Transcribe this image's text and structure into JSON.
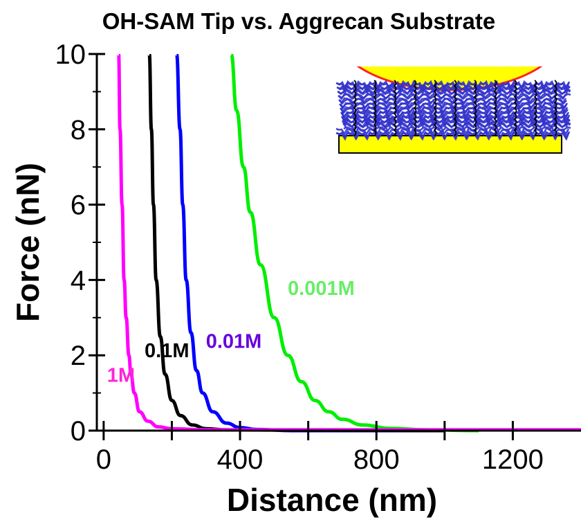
{
  "chart_data": {
    "type": "line",
    "title": "OH-SAM Tip vs. Aggrecan Substrate",
    "xlabel": "Distance (nm)",
    "ylabel": "Force (nN)",
    "xlim": [
      -20,
      1400
    ],
    "ylim": [
      0,
      10
    ],
    "x_ticks": [
      0,
      400,
      800,
      1200
    ],
    "x_tick_labels": [
      "0",
      "400",
      "800",
      "1200"
    ],
    "x_minor_ticks": [
      200,
      600,
      1000
    ],
    "y_ticks": [
      0,
      2,
      4,
      6,
      8,
      10
    ],
    "y_tick_labels": [
      "0",
      "2",
      "4",
      "6",
      "8",
      "10"
    ],
    "y_minor_ticks": [
      1,
      3,
      5,
      7,
      9
    ],
    "grid": false,
    "series": [
      {
        "name": "1M",
        "color": "#ff00ff",
        "points": [
          [
            44,
            10
          ],
          [
            48,
            8
          ],
          [
            54,
            6
          ],
          [
            60,
            4
          ],
          [
            66,
            3
          ],
          [
            74,
            2
          ],
          [
            80,
            1.5
          ],
          [
            90,
            1
          ],
          [
            105,
            0.5
          ],
          [
            130,
            0.25
          ],
          [
            160,
            0.1
          ],
          [
            200,
            0.05
          ],
          [
            300,
            0.02
          ],
          [
            1400,
            0.02
          ]
        ]
      },
      {
        "name": "0.1M",
        "color": "#000000",
        "points": [
          [
            134,
            10
          ],
          [
            140,
            8
          ],
          [
            146,
            6
          ],
          [
            154,
            4
          ],
          [
            166,
            2.5
          ],
          [
            180,
            1.5
          ],
          [
            200,
            0.8
          ],
          [
            225,
            0.4
          ],
          [
            260,
            0.15
          ],
          [
            300,
            0.05
          ],
          [
            360,
            0.02
          ],
          [
            1000,
            0.0
          ]
        ]
      },
      {
        "name": "0.01M",
        "color": "#0000ff",
        "points": [
          [
            214,
            10
          ],
          [
            224,
            8
          ],
          [
            232,
            6
          ],
          [
            242,
            4
          ],
          [
            256,
            2.6
          ],
          [
            272,
            1.6
          ],
          [
            290,
            1
          ],
          [
            320,
            0.5
          ],
          [
            360,
            0.2
          ],
          [
            400,
            0.08
          ],
          [
            450,
            0.03
          ],
          [
            550,
            0.0
          ],
          [
            1000,
            0.0
          ]
        ]
      },
      {
        "name": "0.001M",
        "color": "#00ee00",
        "points": [
          [
            374,
            10
          ],
          [
            390,
            8.5
          ],
          [
            410,
            7
          ],
          [
            430,
            5.8
          ],
          [
            460,
            4.4
          ],
          [
            500,
            3
          ],
          [
            540,
            2
          ],
          [
            580,
            1.3
          ],
          [
            620,
            0.8
          ],
          [
            660,
            0.5
          ],
          [
            700,
            0.3
          ],
          [
            760,
            0.15
          ],
          [
            840,
            0.06
          ],
          [
            950,
            0.02
          ],
          [
            1100,
            0.0
          ]
        ]
      }
    ],
    "annotations": [
      {
        "text": "1M",
        "color": "#ff22dd",
        "x": 10,
        "y": 1.3
      },
      {
        "text": "0.1M",
        "color": "#000000",
        "x": 120,
        "y": 1.95
      },
      {
        "text": "0.01M",
        "color": "#6600dd",
        "x": 300,
        "y": 2.2
      },
      {
        "text": "0.001M",
        "color": "#66ee66",
        "x": 540,
        "y": 3.6
      }
    ],
    "inset": {
      "type": "schematic",
      "tip_color": "#ffff00",
      "tip_edge_color": "#ff2222",
      "brush_color": "#3333cc",
      "chain_color": "#000000",
      "substrate_color": "#ffff00"
    }
  }
}
